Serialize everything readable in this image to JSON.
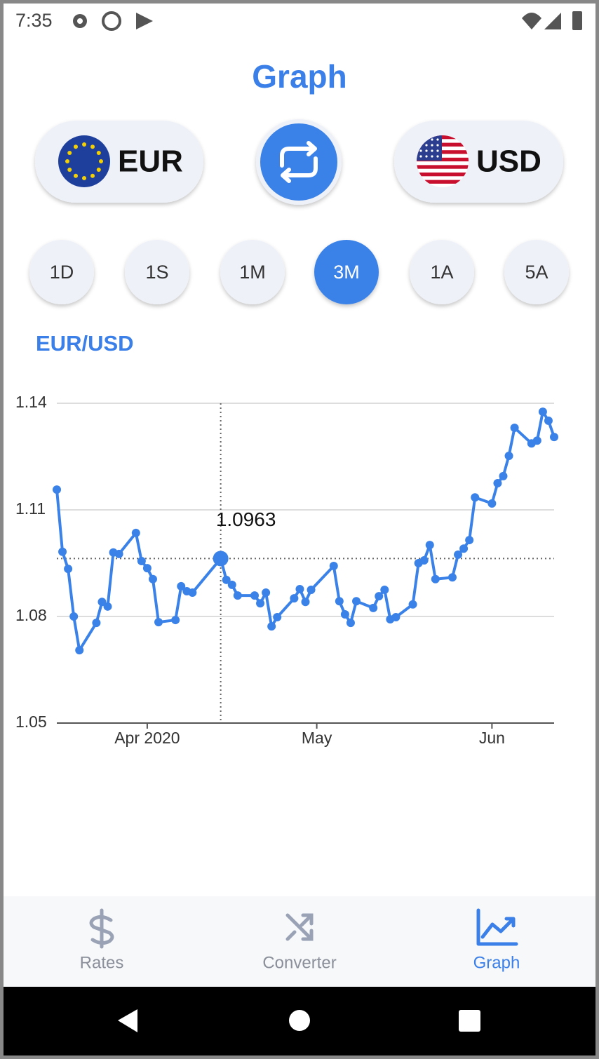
{
  "status_bar": {
    "time": "7:35"
  },
  "header": {
    "title": "Graph"
  },
  "currency_pair": {
    "from": "EUR",
    "to": "USD"
  },
  "periods": {
    "options": [
      "1D",
      "1S",
      "1M",
      "3M",
      "1A",
      "5A"
    ],
    "selected": 3
  },
  "pair_label": "EUR/USD",
  "chart_data": {
    "type": "line",
    "color": "#3b82e8",
    "x": [
      0,
      1,
      2,
      3,
      4,
      7,
      8,
      9,
      10,
      11,
      14,
      15,
      16,
      17,
      18,
      21,
      22,
      23,
      24,
      29,
      30,
      31,
      32,
      35,
      36,
      37,
      38,
      39,
      42,
      43,
      44,
      45,
      49,
      50,
      51,
      52,
      53,
      56,
      57,
      58,
      59,
      60,
      63,
      64,
      65,
      66,
      67,
      70,
      71,
      72,
      73,
      74,
      77,
      78,
      79,
      80,
      81,
      84,
      85,
      86,
      87,
      88
    ],
    "values": [
      1.1157,
      1.0982,
      1.0934,
      1.08,
      1.0705,
      1.0782,
      1.0841,
      1.0828,
      1.098,
      1.0976,
      1.1035,
      1.0956,
      1.0936,
      1.0905,
      1.0784,
      1.079,
      1.0885,
      1.0871,
      1.0867,
      1.0963,
      1.0903,
      1.0889,
      1.0859,
      1.0859,
      1.0837,
      1.0867,
      1.0772,
      1.0798,
      1.0851,
      1.0877,
      1.0841,
      1.0875,
      1.0942,
      1.0843,
      1.0806,
      1.0782,
      1.0843,
      1.0824,
      1.0857,
      1.0875,
      1.0792,
      1.0798,
      1.0834,
      1.095,
      1.0958,
      1.1001,
      1.0905,
      1.091,
      1.0974,
      1.0991,
      1.1015,
      1.1135,
      1.1118,
      1.1175,
      1.1195,
      1.1252,
      1.1331,
      1.1287,
      1.1295,
      1.1376,
      1.1351,
      1.1305
    ],
    "xlim": [
      0,
      88
    ],
    "xticks": [
      {
        "value": 16,
        "label": "Apr 2020"
      },
      {
        "value": 46,
        "label": "May"
      },
      {
        "value": 77,
        "label": "Jun"
      }
    ],
    "ylim": [
      1.05,
      1.14
    ],
    "yticks": [
      {
        "value": 1.05,
        "label": "1.05"
      },
      {
        "value": 1.08,
        "label": "1.08"
      },
      {
        "value": 1.11,
        "label": "1.11"
      },
      {
        "value": 1.14,
        "label": "1.14"
      }
    ],
    "grid": true,
    "selected": {
      "x": 29,
      "value": 1.0963
    }
  },
  "bottom_nav": {
    "items": [
      "Rates",
      "Converter",
      "Graph"
    ],
    "active": 2
  }
}
